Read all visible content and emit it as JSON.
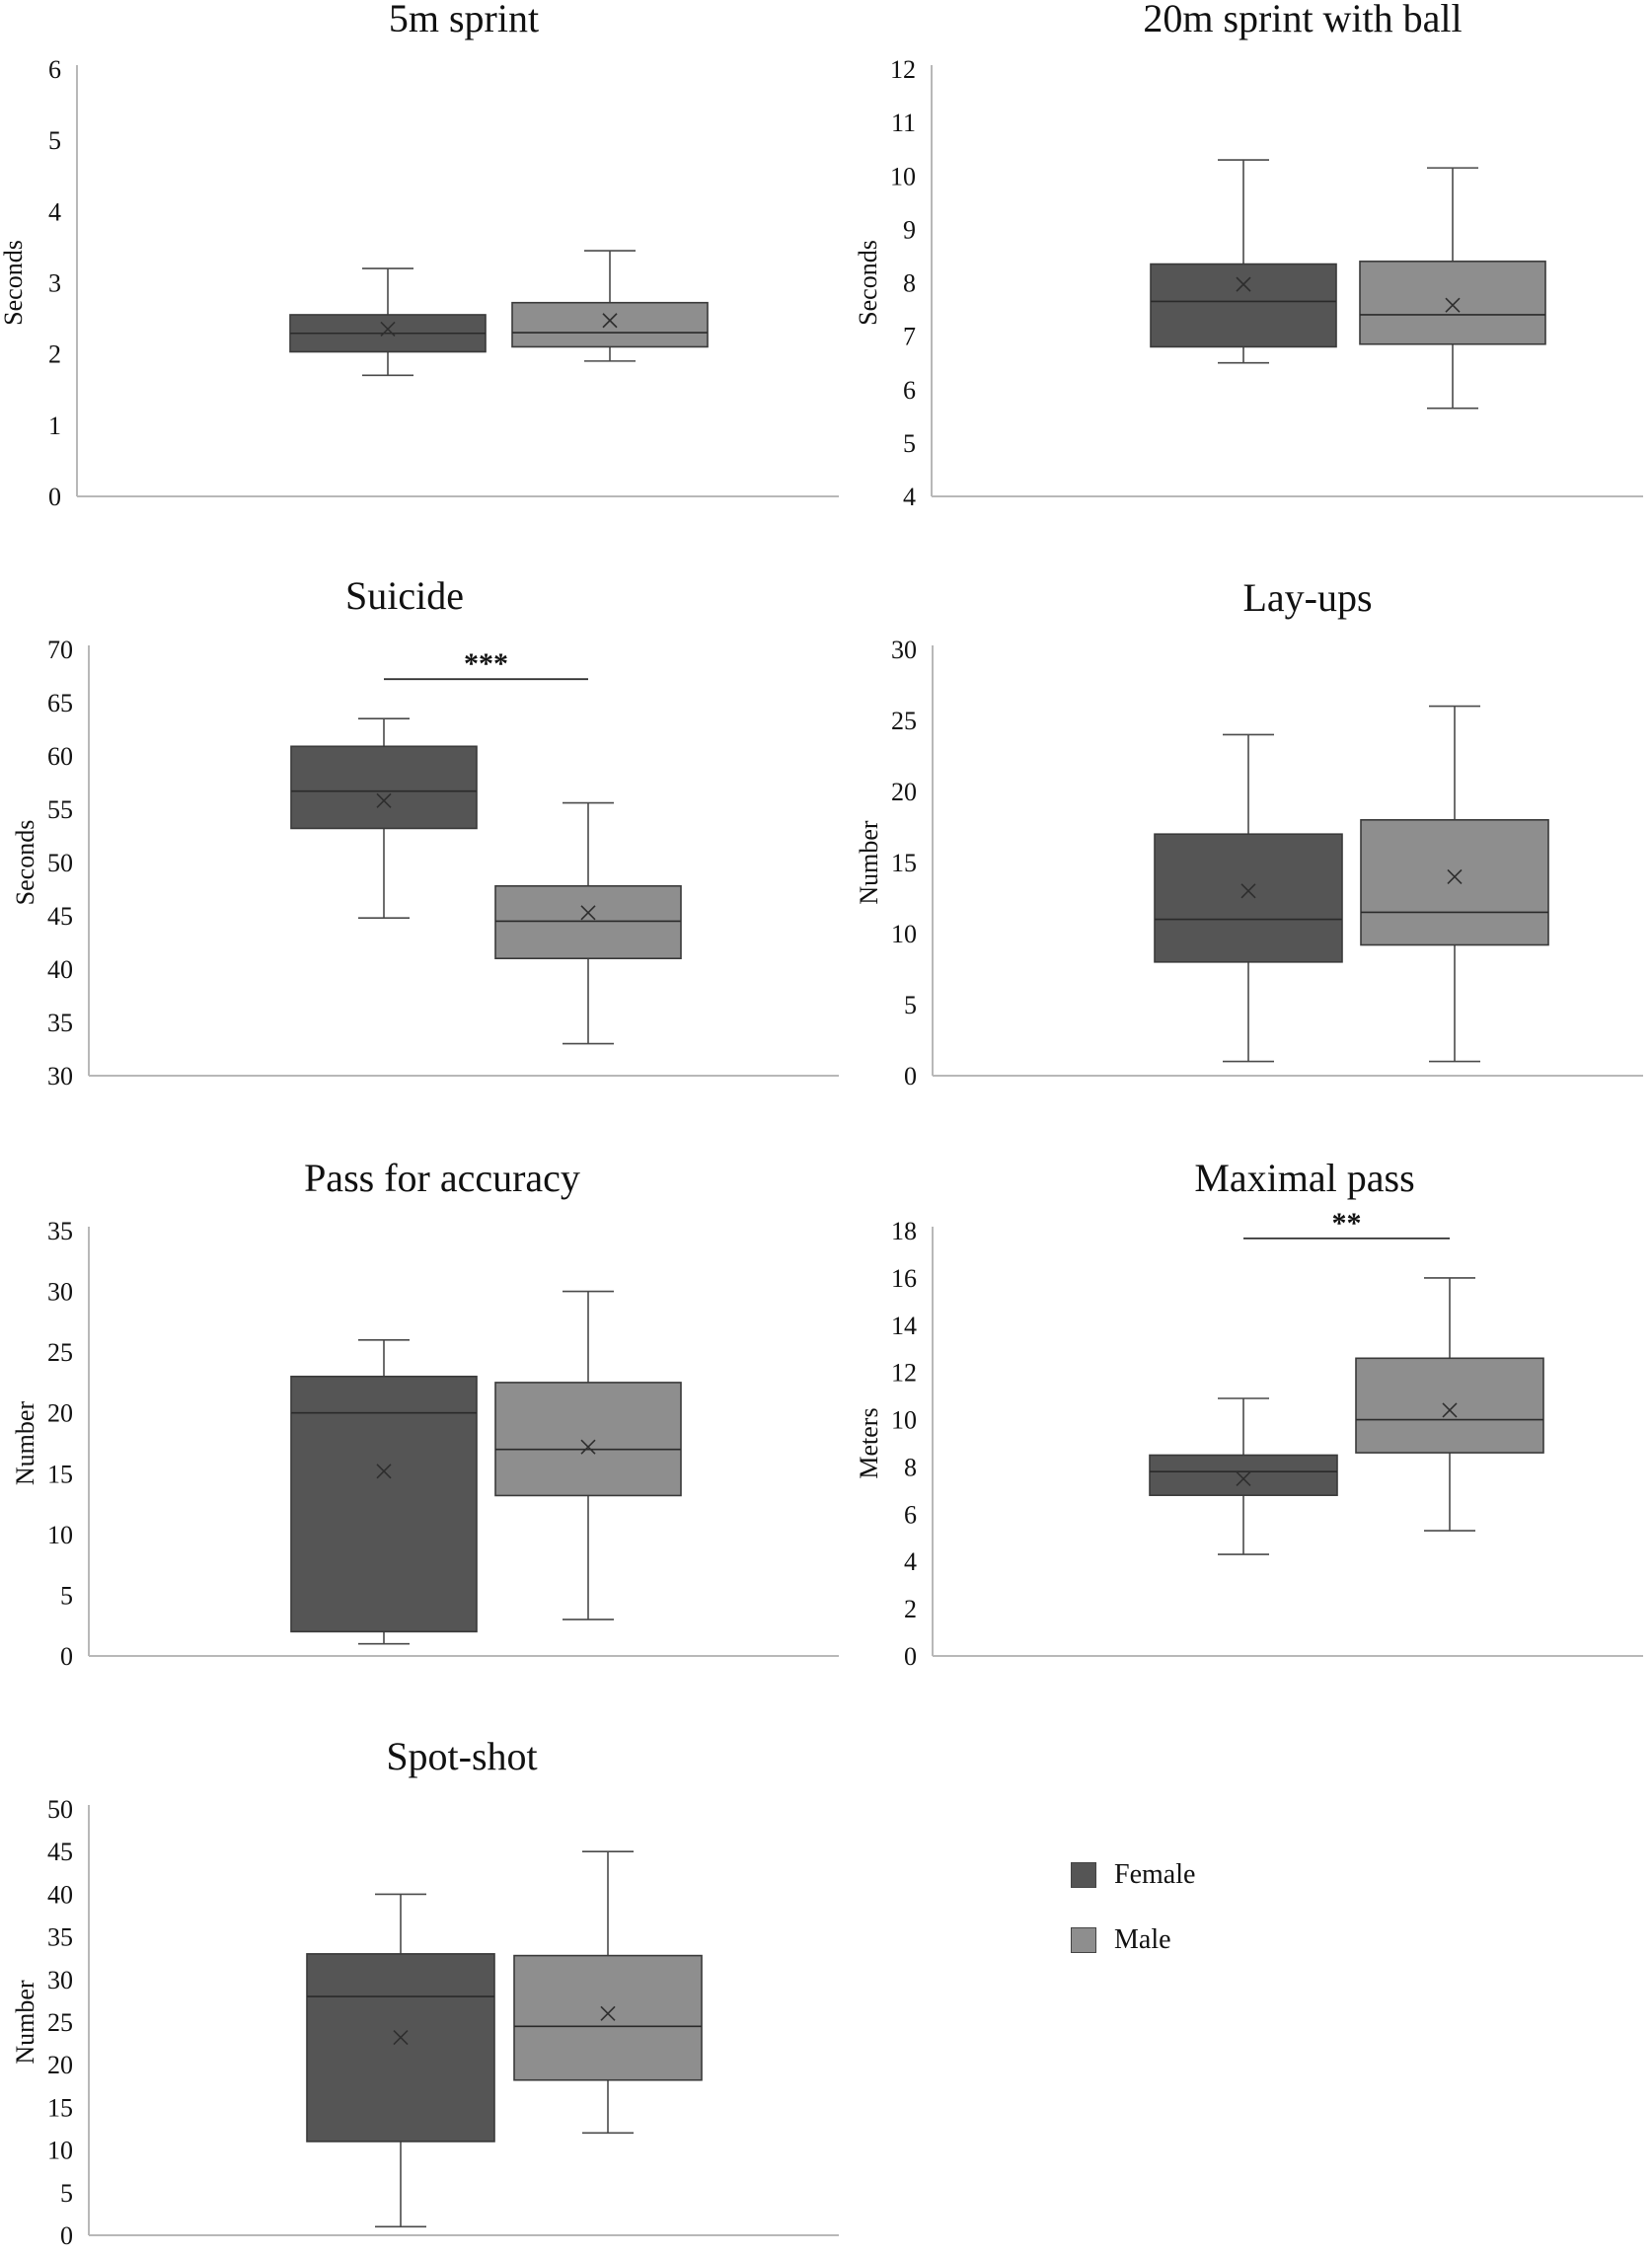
{
  "colors": {
    "female": "#555555",
    "male": "#8e8e8e",
    "whisker": "#4a4a4a",
    "axis": "#b8b8b8",
    "text": "#111111"
  },
  "legend": [
    {
      "series": "female",
      "label": "Female"
    },
    {
      "series": "male",
      "label": "Male"
    }
  ],
  "chart_data": [
    {
      "type": "box",
      "title": "5m sprint",
      "ylabel": "Seconds",
      "yticks": [
        "0",
        "1",
        "2",
        "3",
        "4",
        "5",
        "6"
      ],
      "ylim": [
        0,
        6
      ],
      "series": [
        {
          "name": "Female",
          "min": 1.7,
          "q1": 2.03,
          "median": 2.29,
          "q3": 2.55,
          "max": 3.2,
          "mean": 2.35
        },
        {
          "name": "Male",
          "min": 1.9,
          "q1": 2.1,
          "median": 2.3,
          "q3": 2.72,
          "max": 3.45,
          "mean": 2.47
        }
      ],
      "annotation": ""
    },
    {
      "type": "box",
      "title": "20m sprint with ball",
      "ylabel": "Seconds",
      "yticks": [
        "4",
        "5",
        "6",
        "7",
        "8",
        "9",
        "10",
        "11",
        "12"
      ],
      "ylim": [
        4,
        12
      ],
      "series": [
        {
          "name": "Female",
          "min": 6.5,
          "q1": 6.8,
          "median": 7.65,
          "q3": 8.35,
          "max": 10.3,
          "mean": 7.97
        },
        {
          "name": "Male",
          "min": 5.65,
          "q1": 6.85,
          "median": 7.4,
          "q3": 8.4,
          "max": 10.15,
          "mean": 7.58
        }
      ],
      "annotation": ""
    },
    {
      "type": "box",
      "title": "Suicide",
      "ylabel": "Seconds",
      "yticks": [
        "30",
        "35",
        "40",
        "45",
        "50",
        "55",
        "60",
        "65",
        "70"
      ],
      "ylim": [
        30,
        70
      ],
      "series": [
        {
          "name": "Female",
          "min": 44.8,
          "q1": 53.2,
          "median": 56.7,
          "q3": 60.9,
          "max": 63.5,
          "mean": 55.8
        },
        {
          "name": "Male",
          "min": 33.0,
          "q1": 41.0,
          "median": 44.5,
          "q3": 47.8,
          "max": 55.6,
          "mean": 45.3
        }
      ],
      "annotation": "***"
    },
    {
      "type": "box",
      "title": "Lay-ups",
      "ylabel": "Number",
      "yticks": [
        "0",
        "5",
        "10",
        "15",
        "20",
        "25",
        "30"
      ],
      "ylim": [
        0,
        30
      ],
      "series": [
        {
          "name": "Female",
          "min": 1,
          "q1": 8,
          "median": 11,
          "q3": 17,
          "max": 24,
          "mean": 13
        },
        {
          "name": "Male",
          "min": 1,
          "q1": 9.2,
          "median": 11.5,
          "q3": 18,
          "max": 26,
          "mean": 14
        }
      ],
      "annotation": ""
    },
    {
      "type": "box",
      "title": "Pass for accuracy",
      "ylabel": "Number",
      "yticks": [
        "0",
        "5",
        "10",
        "15",
        "20",
        "25",
        "30",
        "35"
      ],
      "ylim": [
        0,
        35
      ],
      "series": [
        {
          "name": "Female",
          "min": 1,
          "q1": 2,
          "median": 20,
          "q3": 23,
          "max": 26,
          "mean": 15.2
        },
        {
          "name": "Male",
          "min": 3,
          "q1": 13.2,
          "median": 17,
          "q3": 22.5,
          "max": 30,
          "mean": 17.2
        }
      ],
      "annotation": ""
    },
    {
      "type": "box",
      "title": "Maximal pass",
      "ylabel": "Meters",
      "yticks": [
        "0",
        "2",
        "4",
        "6",
        "8",
        "10",
        "12",
        "14",
        "16",
        "18"
      ],
      "ylim": [
        0,
        18
      ],
      "series": [
        {
          "name": "Female",
          "min": 4.3,
          "q1": 6.8,
          "median": 7.8,
          "q3": 8.5,
          "max": 10.9,
          "mean": 7.5
        },
        {
          "name": "Male",
          "min": 5.3,
          "q1": 8.6,
          "median": 10,
          "q3": 12.6,
          "max": 16,
          "mean": 10.4
        }
      ],
      "annotation": "**"
    },
    {
      "type": "box",
      "title": "Spot-shot",
      "ylabel": "Number",
      "yticks": [
        "0",
        "5",
        "10",
        "15",
        "20",
        "25",
        "30",
        "35",
        "40",
        "45",
        "50"
      ],
      "ylim": [
        0,
        50
      ],
      "series": [
        {
          "name": "Female",
          "min": 1,
          "q1": 11,
          "median": 28,
          "q3": 33,
          "max": 40,
          "mean": 23.2
        },
        {
          "name": "Male",
          "min": 12,
          "q1": 18.2,
          "median": 24.5,
          "q3": 32.8,
          "max": 45,
          "mean": 26
        }
      ],
      "annotation": ""
    }
  ]
}
